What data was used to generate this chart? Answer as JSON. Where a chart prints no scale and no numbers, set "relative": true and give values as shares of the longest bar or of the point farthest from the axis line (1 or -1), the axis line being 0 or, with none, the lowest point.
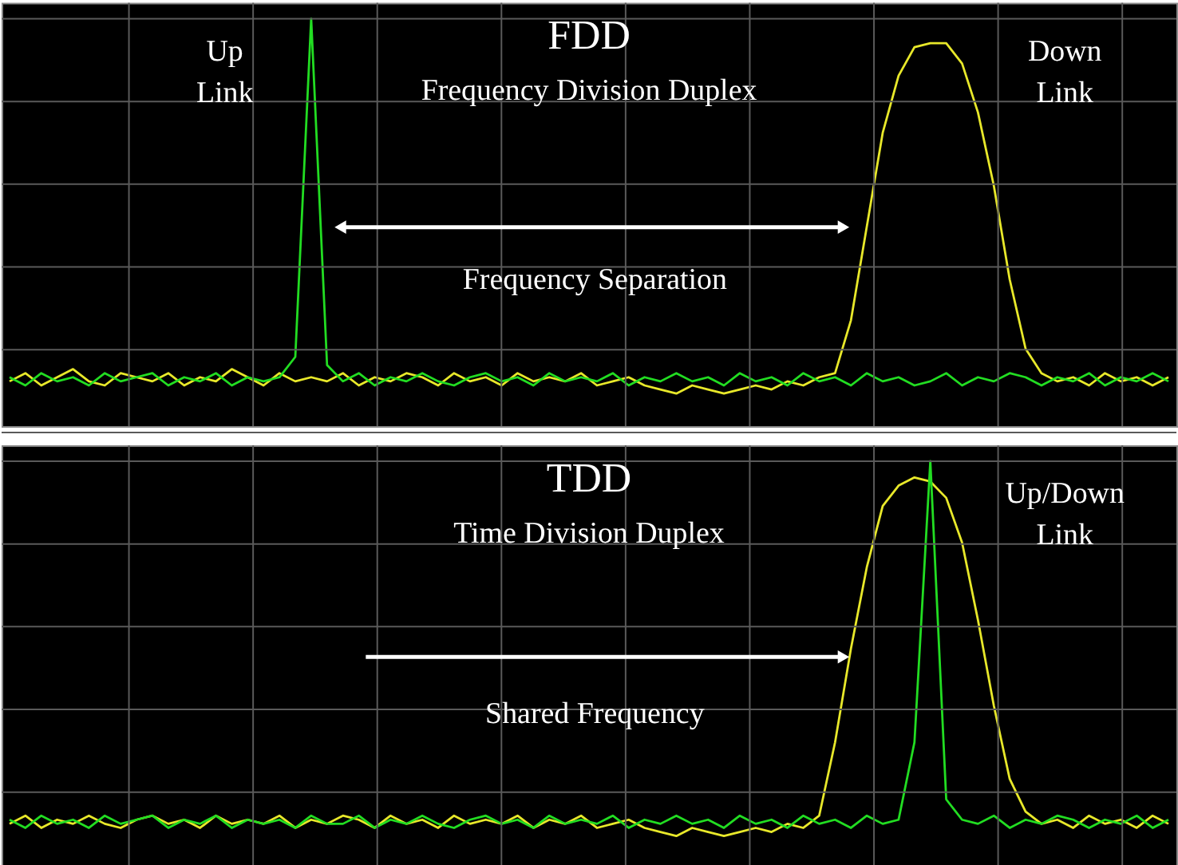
{
  "chart_data": [
    {
      "type": "line",
      "title": "FDD",
      "subtitle": "Frequency Division Duplex",
      "relative": true,
      "grid": true,
      "categories": [
        null,
        null,
        null,
        null,
        null,
        null,
        null,
        null,
        null,
        null,
        null,
        null,
        null,
        null,
        null,
        null,
        null,
        null,
        null,
        null,
        null,
        null,
        null,
        null,
        null,
        null,
        null,
        null,
        null,
        null,
        null,
        null,
        null,
        null,
        null,
        null,
        null,
        null,
        null,
        null,
        null,
        null,
        null,
        null,
        null,
        null,
        null,
        null,
        null,
        null,
        null,
        null,
        null,
        null,
        null,
        null,
        null,
        null,
        null,
        null,
        null,
        null,
        null,
        null,
        null,
        null,
        null,
        null,
        null,
        null,
        null,
        null,
        null,
        null
      ],
      "series": [
        {
          "color": "#e8e82a",
          "values": [
            0.11,
            0.13,
            0.1,
            0.12,
            0.14,
            0.11,
            0.1,
            0.13,
            0.12,
            0.11,
            0.13,
            0.1,
            0.12,
            0.11,
            0.14,
            0.12,
            0.1,
            0.13,
            0.11,
            0.12,
            0.11,
            0.13,
            0.1,
            0.12,
            0.11,
            0.13,
            0.12,
            0.1,
            0.13,
            0.11,
            0.12,
            0.1,
            0.13,
            0.11,
            0.12,
            0.11,
            0.13,
            0.1,
            0.11,
            0.12,
            0.1,
            0.09,
            0.08,
            0.1,
            0.09,
            0.08,
            0.09,
            0.1,
            0.09,
            0.11,
            0.1,
            0.12,
            0.13,
            0.26,
            0.49,
            0.72,
            0.86,
            0.93,
            0.94,
            0.94,
            0.89,
            0.77,
            0.59,
            0.36,
            0.19,
            0.13,
            0.11,
            0.12,
            0.1,
            0.13,
            0.11,
            0.12,
            0.1,
            0.12
          ]
        },
        {
          "color": "#22dd22",
          "values": [
            0.12,
            0.1,
            0.13,
            0.11,
            0.12,
            0.1,
            0.13,
            0.11,
            0.12,
            0.13,
            0.1,
            0.12,
            0.11,
            0.13,
            0.1,
            0.12,
            0.11,
            0.12,
            0.17,
            1.0,
            0.15,
            0.11,
            0.13,
            0.1,
            0.12,
            0.11,
            0.13,
            0.11,
            0.1,
            0.12,
            0.13,
            0.11,
            0.12,
            0.1,
            0.13,
            0.11,
            0.12,
            0.11,
            0.13,
            0.1,
            0.12,
            0.11,
            0.13,
            0.11,
            0.12,
            0.1,
            0.13,
            0.11,
            0.12,
            0.1,
            0.13,
            0.11,
            0.12,
            0.1,
            0.13,
            0.11,
            0.12,
            0.1,
            0.11,
            0.13,
            0.1,
            0.12,
            0.11,
            0.13,
            0.12,
            0.1,
            0.12,
            0.11,
            0.13,
            0.1,
            0.12,
            0.11,
            0.13,
            0.11
          ]
        }
      ],
      "annotations": [
        "Up\nLink",
        "Down\nLink",
        "Frequency Separation"
      ]
    },
    {
      "type": "line",
      "title": "TDD",
      "subtitle": "Time Division Duplex",
      "relative": true,
      "grid": true,
      "categories": [
        null,
        null,
        null,
        null,
        null,
        null,
        null,
        null,
        null,
        null,
        null,
        null,
        null,
        null,
        null,
        null,
        null,
        null,
        null,
        null,
        null,
        null,
        null,
        null,
        null,
        null,
        null,
        null,
        null,
        null,
        null,
        null,
        null,
        null,
        null,
        null,
        null,
        null,
        null,
        null,
        null,
        null,
        null,
        null,
        null,
        null,
        null,
        null,
        null,
        null,
        null,
        null,
        null,
        null,
        null,
        null,
        null,
        null,
        null,
        null,
        null,
        null,
        null,
        null,
        null,
        null,
        null,
        null,
        null,
        null,
        null,
        null,
        null,
        null
      ],
      "series": [
        {
          "color": "#e8e82a",
          "values": [
            0.11,
            0.13,
            0.1,
            0.12,
            0.11,
            0.13,
            0.11,
            0.1,
            0.12,
            0.13,
            0.11,
            0.12,
            0.1,
            0.13,
            0.11,
            0.12,
            0.11,
            0.13,
            0.1,
            0.12,
            0.11,
            0.13,
            0.12,
            0.1,
            0.13,
            0.11,
            0.12,
            0.1,
            0.13,
            0.11,
            0.12,
            0.11,
            0.13,
            0.1,
            0.12,
            0.11,
            0.13,
            0.1,
            0.11,
            0.12,
            0.1,
            0.09,
            0.08,
            0.1,
            0.09,
            0.08,
            0.09,
            0.1,
            0.09,
            0.11,
            0.1,
            0.13,
            0.31,
            0.54,
            0.74,
            0.89,
            0.94,
            0.96,
            0.95,
            0.91,
            0.8,
            0.61,
            0.4,
            0.22,
            0.14,
            0.11,
            0.12,
            0.1,
            0.13,
            0.11,
            0.12,
            0.1,
            0.13,
            0.11
          ]
        },
        {
          "color": "#22dd22",
          "values": [
            0.12,
            0.1,
            0.13,
            0.11,
            0.12,
            0.1,
            0.13,
            0.11,
            0.12,
            0.13,
            0.1,
            0.12,
            0.11,
            0.13,
            0.1,
            0.12,
            0.11,
            0.12,
            0.1,
            0.13,
            0.11,
            0.11,
            0.13,
            0.1,
            0.12,
            0.11,
            0.13,
            0.11,
            0.1,
            0.12,
            0.13,
            0.11,
            0.12,
            0.1,
            0.13,
            0.11,
            0.12,
            0.11,
            0.13,
            0.1,
            0.12,
            0.11,
            0.13,
            0.11,
            0.12,
            0.1,
            0.13,
            0.11,
            0.12,
            0.1,
            0.13,
            0.11,
            0.12,
            0.1,
            0.13,
            0.11,
            0.12,
            0.31,
            1.0,
            0.17,
            0.12,
            0.11,
            0.13,
            0.1,
            0.12,
            0.11,
            0.13,
            0.12,
            0.1,
            0.12,
            0.11,
            0.13,
            0.1,
            0.12
          ]
        }
      ],
      "annotations": [
        "Up/Down\nLink",
        "Shared Frequency"
      ]
    }
  ]
}
